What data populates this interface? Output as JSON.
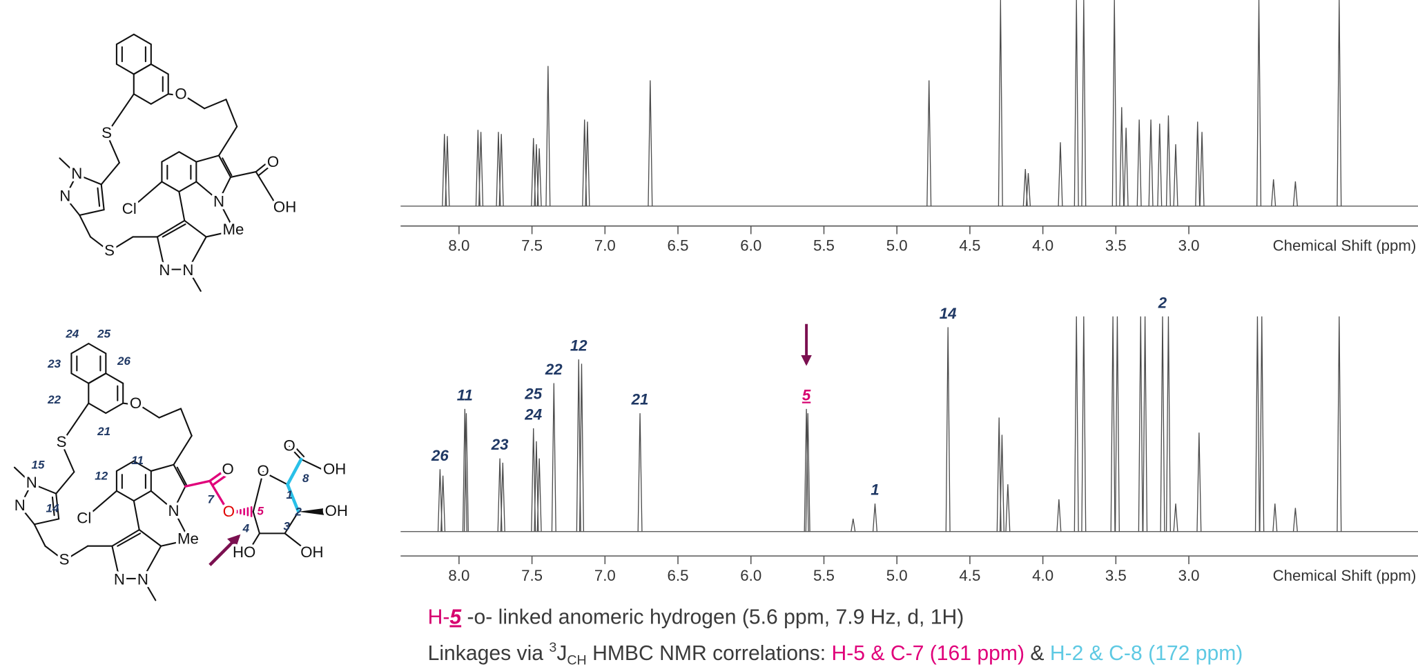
{
  "chart_data": [
    {
      "type": "spectrum",
      "color": "#4a4a4a",
      "x": [
        8.1,
        8.08,
        7.87,
        7.85,
        7.73,
        7.71,
        7.49,
        7.47,
        7.45,
        7.39,
        7.14,
        7.12,
        6.69,
        4.78,
        4.29,
        4.12,
        4.1,
        3.88,
        3.77,
        3.72,
        3.51,
        3.46,
        3.43,
        3.34,
        3.26,
        3.2,
        3.14,
        3.09,
        2.94,
        2.91,
        2.52,
        2.42,
        2.27,
        1.97
      ],
      "values": [
        35,
        34,
        37,
        36,
        36,
        35,
        33,
        30,
        28,
        68,
        42,
        41,
        61,
        61,
        100,
        18,
        16,
        31,
        100,
        100,
        100,
        48,
        38,
        42,
        42,
        40,
        44,
        30,
        41,
        36,
        100,
        13,
        12,
        100
      ],
      "xlim": [
        8.4,
        1.43
      ],
      "ylim": [
        0,
        100
      ],
      "xticks": [
        {
          "value": 8,
          "label": "8.0"
        },
        7.5,
        {
          "value": 7,
          "label": "7.0"
        },
        6.5,
        {
          "value": 6,
          "label": "6.0"
        },
        5.5,
        {
          "value": 5,
          "label": "5.0"
        },
        4.5,
        {
          "value": 4,
          "label": "4.0"
        },
        3.5,
        {
          "value": 3,
          "label": "3.0"
        }
      ],
      "xlabel": "Chemical Shift (ppm)"
    },
    {
      "type": "spectrum",
      "color": "#4a4a4a",
      "x": [
        8.13,
        8.11,
        7.96,
        7.95,
        7.72,
        7.7,
        7.49,
        7.47,
        7.45,
        7.35,
        7.18,
        7.16,
        6.76,
        5.62,
        5.61,
        5.3,
        5.15,
        4.65,
        4.3,
        4.28,
        4.24,
        3.89,
        3.77,
        3.72,
        3.52,
        3.49,
        3.33,
        3.3,
        3.18,
        3.14,
        3.09,
        2.93,
        2.53,
        2.5,
        2.41,
        2.27,
        1.97
      ],
      "values": [
        29,
        26,
        57,
        55,
        34,
        32,
        48,
        42,
        34,
        69,
        80,
        78,
        55,
        57,
        55,
        6,
        13,
        95,
        53,
        45,
        22,
        15,
        100,
        100,
        100,
        100,
        100,
        100,
        100,
        100,
        13,
        46,
        100,
        100,
        13,
        11,
        100
      ],
      "labels": [
        "26",
        null,
        "11",
        null,
        "23",
        null,
        [
          "25",
          "24"
        ],
        null,
        null,
        "22",
        "12",
        null,
        "21",
        {
          "text": "5",
          "color": "#d6006f",
          "underline": true,
          "arrow": "#7b1050"
        },
        null,
        null,
        "1",
        "14",
        null,
        null,
        null,
        null,
        null,
        null,
        null,
        null,
        null,
        null,
        "2",
        null,
        null,
        null,
        null,
        null,
        null,
        null,
        null
      ],
      "xlim": [
        8.4,
        1.43
      ],
      "ylim": [
        0,
        100
      ],
      "xticks": [
        {
          "value": 8,
          "label": "8.0"
        },
        7.5,
        {
          "value": 7,
          "label": "7.0"
        },
        6.5,
        {
          "value": 6,
          "label": "6.0"
        },
        5.5,
        {
          "value": 5,
          "label": "5.0"
        },
        4.5,
        {
          "value": 4,
          "label": "4.0"
        },
        3.5,
        {
          "value": 3,
          "label": "3.0"
        }
      ],
      "xlabel": "Chemical Shift (ppm)"
    }
  ],
  "structures": [
    {
      "atoms": [
        "O",
        "S",
        "N",
        "N",
        "Cl",
        "O",
        "OH",
        "N",
        "Me",
        "S",
        "N",
        "N"
      ]
    },
    {
      "atoms": [
        "O",
        "S",
        "N",
        "N",
        "Cl",
        "O",
        {
          "text": "O",
          "color": "#e00000"
        },
        "N",
        "Me",
        "S",
        "N",
        "N",
        "O",
        "O",
        "OH",
        "OH",
        "OH",
        "HO"
      ],
      "locants": [
        "24",
        "25",
        "23",
        "26",
        "22",
        "21",
        "15",
        "14",
        "12",
        "11",
        "7",
        {
          "text": "5",
          "color": "#d6006f"
        },
        "1",
        "2",
        "3",
        "4",
        "8"
      ]
    }
  ],
  "captions": [
    [
      {
        "text": "H-",
        "color": "#d6006f"
      },
      {
        "text": "5",
        "color": "#d6006f",
        "style": "emphasis"
      },
      {
        "text": " -o- linked anomeric hydrogen (5.6 ppm, 7.9 Hz, d, 1H)"
      }
    ],
    [
      {
        "text": "Linkages via "
      },
      {
        "text": "3",
        "style": "sup"
      },
      {
        "text": "J"
      },
      {
        "text": "CH",
        "style": "sub"
      },
      {
        "text": " HMBC NMR correlations: "
      },
      {
        "text": "H-5 & C-7 (161 ppm)",
        "color": "#e0007a"
      },
      {
        "text": " & "
      },
      {
        "text": "H-2 & C-8 (172 ppm)",
        "color": "#5ec9e3"
      }
    ]
  ]
}
